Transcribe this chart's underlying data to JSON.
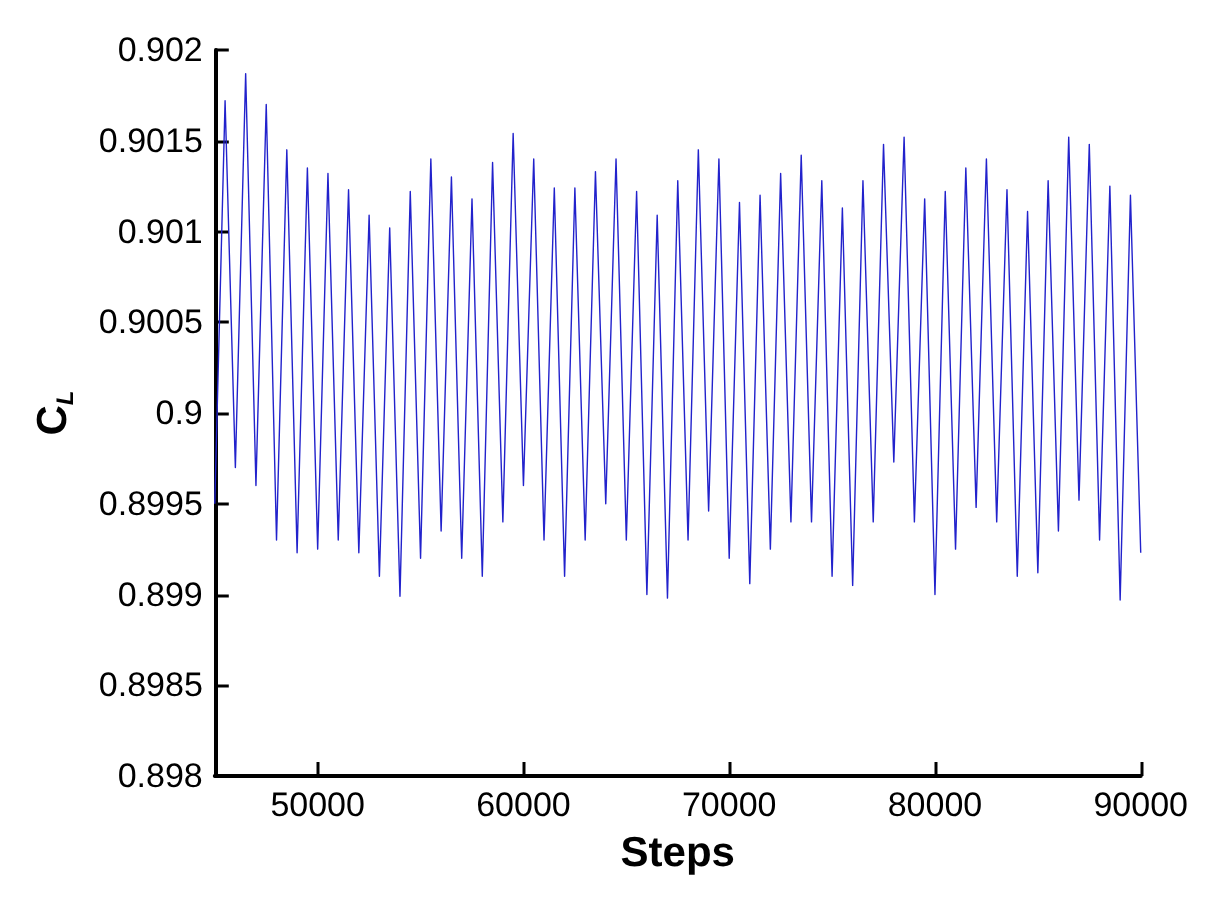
{
  "chart_data": {
    "type": "line",
    "xlabel": "Steps",
    "ylabel": "C$_{L}$",
    "x": [
      45000,
      45500,
      46000,
      46500,
      47000,
      47500,
      48000,
      48500,
      49000,
      49500,
      50000,
      50500,
      51000,
      51500,
      52000,
      52500,
      53000,
      53500,
      54000,
      54500,
      55000,
      55500,
      56000,
      56500,
      57000,
      57500,
      58000,
      58500,
      59000,
      59500,
      60000,
      60500,
      61000,
      61500,
      62000,
      62500,
      63000,
      63500,
      64000,
      64500,
      65000,
      65500,
      66000,
      66500,
      67000,
      67500,
      68000,
      68500,
      69000,
      69500,
      70000,
      70500,
      71000,
      71500,
      72000,
      72500,
      73000,
      73500,
      74000,
      74500,
      75000,
      75500,
      76000,
      76500,
      77000,
      77500,
      78000,
      78500,
      79000,
      79500,
      80000,
      80500,
      81000,
      81500,
      82000,
      82500,
      83000,
      83500,
      84000,
      84500,
      85000,
      85500,
      86000,
      86500,
      87000,
      87500,
      88000,
      88500,
      89000,
      89500,
      90000
    ],
    "series": [
      {
        "color": "#2222cc",
        "values": [
          0.8995,
          0.90172,
          0.8997,
          0.90187,
          0.8996,
          0.9017,
          0.8993,
          0.90145,
          0.89923,
          0.90135,
          0.89925,
          0.90132,
          0.8993,
          0.90123,
          0.89923,
          0.90109,
          0.8991,
          0.90102,
          0.89899,
          0.90122,
          0.8992,
          0.9014,
          0.89935,
          0.9013,
          0.8992,
          0.90118,
          0.8991,
          0.90138,
          0.8994,
          0.90154,
          0.8996,
          0.9014,
          0.8993,
          0.90124,
          0.8991,
          0.90124,
          0.8993,
          0.90133,
          0.8995,
          0.9014,
          0.8993,
          0.90122,
          0.899,
          0.90109,
          0.89898,
          0.90128,
          0.8993,
          0.90145,
          0.89946,
          0.9014,
          0.8992,
          0.90116,
          0.89906,
          0.9012,
          0.89925,
          0.90132,
          0.8994,
          0.90142,
          0.8994,
          0.90128,
          0.8991,
          0.90113,
          0.89905,
          0.90128,
          0.8994,
          0.90148,
          0.89973,
          0.90152,
          0.8994,
          0.90118,
          0.899,
          0.90122,
          0.89925,
          0.90135,
          0.89948,
          0.9014,
          0.8994,
          0.90123,
          0.8991,
          0.90111,
          0.89912,
          0.90128,
          0.89935,
          0.90152,
          0.89952,
          0.90148,
          0.8993,
          0.90125,
          0.89897,
          0.9012,
          0.89923
        ]
      }
    ],
    "xlim": [
      45000,
      90000
    ],
    "xticks": [
      50000,
      60000,
      70000,
      80000,
      90000
    ],
    "ylim": [
      0.898,
      0.902
    ],
    "yticks": [
      0.898,
      0.8985,
      0.899,
      0.8995,
      0.9,
      0.9005,
      0.901,
      0.9015,
      0.902
    ],
    "grid": false,
    "marker": "none",
    "line_style": "solid"
  }
}
